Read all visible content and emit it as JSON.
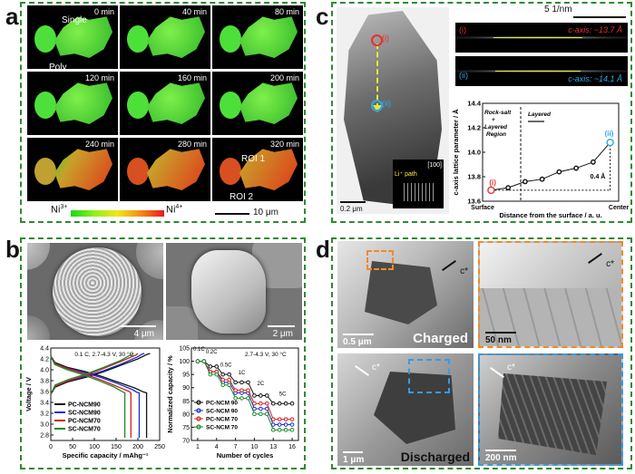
{
  "panels": {
    "a": "a",
    "b": "b",
    "c": "c",
    "d": "d"
  },
  "panel_a": {
    "times": [
      "0 min",
      "40 min",
      "80 min",
      "120 min",
      "160 min",
      "200 min",
      "240 min",
      "280 min",
      "320 min"
    ],
    "single": "Single",
    "poly": "Poly",
    "roi1": "ROI 1",
    "roi2": "ROI 2",
    "ni3": "Ni",
    "ni3_sup": "3+",
    "ni4": "Ni",
    "ni4_sup": "4+",
    "scale": "10 μm"
  },
  "panel_b": {
    "scale1": "4 μm",
    "scale2": "2 μm",
    "left_chart": {
      "annotation": "0.1 C, 2.7-4.3 V, 30 °C",
      "xlabel": "Specific capacity / mAhg⁻¹",
      "ylabel": "Voltage / V",
      "xticks": [
        "0",
        "50",
        "100",
        "150",
        "200",
        "250"
      ],
      "yticks": [
        "2.8",
        "3.0",
        "3.2",
        "3.4",
        "3.6",
        "3.8",
        "4.0",
        "4.2",
        "4.4"
      ],
      "legend": [
        "PC-NCM90",
        "SC-NCM90",
        "PC-NCM70",
        "SC-NCM70"
      ]
    },
    "right_chart": {
      "annotation": "2.7-4.3 V, 30 °C",
      "xlabel": "Number of cycles",
      "ylabel": "Normalized capacity / %",
      "xticks": [
        "1",
        "4",
        "7",
        "10",
        "13",
        "16"
      ],
      "yticks": [
        "70",
        "75",
        "80",
        "85",
        "90",
        "95",
        "100",
        "105"
      ],
      "rates": [
        "0.1C",
        "0.2C",
        "0.5C",
        "1C",
        "2C",
        "5C"
      ],
      "legend": [
        "PC-NCM 90",
        "SC-NCM 90",
        "PC-NCM 70",
        "SC-NCM 70"
      ]
    }
  },
  "panel_c": {
    "scale_top": "5 1/nm",
    "i": "(i)",
    "ii": "(ii)",
    "caxis1": "c-axis: ~13.7 Å",
    "caxis2": "c-axis: ~14.1 Å",
    "li_path": "Li⁺ path",
    "zone": "[100]",
    "scale_bottom": "0.2 μm",
    "chart": {
      "ylabel": "c-axis lattice parameter / Å",
      "xlabel": "Distance from the surface / a. u.",
      "xticks": [
        "Surface",
        "Center"
      ],
      "yticks": [
        "13.6",
        "13.8",
        "14.0",
        "14.2",
        "14.4"
      ],
      "rocksalt": "Rock-salt",
      "plus": "+",
      "layered1": "Layered",
      "region": "Region",
      "layered2": "Layered",
      "delta": "0.4 Å",
      "pt_i": "(i)",
      "pt_ii": "(ii)"
    }
  },
  "panel_d": {
    "charged": "Charged",
    "discharged": "Discharged",
    "c_star": "c*",
    "scale1": "0.5 μm",
    "scale2": "50 nm",
    "scale3": "1 μm",
    "scale4": "200 nm"
  },
  "chart_data": [
    {
      "type": "line",
      "title": "",
      "xlabel": "Specific capacity / mAhg⁻¹",
      "ylabel": "Voltage / V",
      "xlim": [
        0,
        250
      ],
      "ylim": [
        2.7,
        4.4
      ],
      "series": [
        {
          "name": "PC-NCM90",
          "color": "#111111",
          "x": [
            0,
            10,
            40,
            80,
            120,
            160,
            200,
            220,
            228
          ],
          "y": [
            3.55,
            3.68,
            3.78,
            3.86,
            3.96,
            4.08,
            4.2,
            4.28,
            4.3
          ]
        },
        {
          "name": "SC-NCM90",
          "color": "#1a2ed0",
          "x": [
            0,
            10,
            40,
            80,
            120,
            160,
            200,
            210,
            215
          ],
          "y": [
            3.55,
            3.7,
            3.8,
            3.88,
            3.98,
            4.1,
            4.24,
            4.29,
            4.3
          ]
        },
        {
          "name": "PC-NCM70",
          "color": "#d02020",
          "x": [
            0,
            10,
            40,
            80,
            120,
            160,
            195,
            200
          ],
          "y": [
            3.55,
            3.7,
            3.8,
            3.9,
            4.02,
            4.15,
            4.27,
            4.3
          ]
        },
        {
          "name": "SC-NCM70",
          "color": "#1b8a2a",
          "x": [
            0,
            10,
            40,
            80,
            120,
            160,
            185,
            190
          ],
          "y": [
            3.55,
            3.72,
            3.82,
            3.92,
            4.04,
            4.17,
            4.28,
            4.3
          ]
        }
      ]
    },
    {
      "type": "line",
      "title": "",
      "xlabel": "Number of cycles",
      "ylabel": "Normalized capacity / %",
      "xlim": [
        0,
        17
      ],
      "ylim": [
        70,
        105
      ],
      "x": [
        1,
        2,
        3,
        4,
        5,
        6,
        7,
        8,
        9,
        10,
        11,
        12,
        13,
        14,
        15,
        16
      ],
      "series": [
        {
          "name": "PC-NCM 90",
          "color": "#111111",
          "values": [
            100,
            100,
            98,
            98,
            95,
            95,
            92,
            92,
            92,
            87,
            87,
            87,
            84,
            84,
            84,
            84
          ]
        },
        {
          "name": "SC-NCM 90",
          "color": "#1a2ed0",
          "values": [
            100,
            100,
            96,
            96,
            92,
            92,
            88,
            88,
            88,
            82,
            82,
            82,
            76,
            76,
            76,
            76
          ]
        },
        {
          "name": "PC-NCM 70",
          "color": "#d02020",
          "values": [
            100,
            100,
            96,
            96,
            93,
            93,
            89,
            89,
            89,
            84,
            84,
            84,
            78,
            78,
            78,
            78
          ]
        },
        {
          "name": "SC-NCM 70",
          "color": "#1b8a2a",
          "values": [
            100,
            100,
            95,
            95,
            91,
            91,
            86,
            86,
            86,
            80,
            80,
            80,
            74,
            74,
            74,
            74
          ]
        }
      ]
    },
    {
      "type": "line",
      "title": "",
      "xlabel": "Distance from the surface / a. u.",
      "ylabel": "c-axis lattice parameter / Å",
      "ylim": [
        13.6,
        14.4
      ],
      "x": [
        1,
        2,
        3,
        4,
        5,
        6,
        7,
        8
      ],
      "series": [
        {
          "name": "",
          "color": "#111111",
          "values": [
            13.69,
            13.71,
            13.76,
            13.78,
            13.84,
            13.87,
            13.92,
            14.08
          ]
        }
      ]
    }
  ]
}
